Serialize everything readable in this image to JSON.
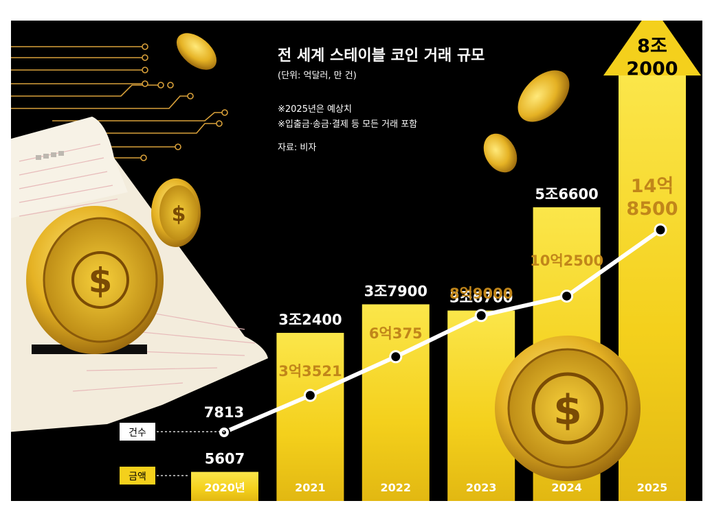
{
  "title": "전 세계 스테이블 코인 거래 규모",
  "unit": "(단위: 억달러, 만 건)",
  "notes": [
    "※2025년은 예상치",
    "※입출금·송금·결제 등 모든 거래 포함"
  ],
  "source": "자료: 비자",
  "legend": {
    "count_label": "건수",
    "amount_label": "금액"
  },
  "coin_symbol": "$",
  "colors": {
    "bar_gold": "#f4d01c",
    "bar_gold_light": "#fbe64a",
    "line": "#ffffff",
    "inner_label": "#c1861a",
    "background": "#000000"
  },
  "chart_data": {
    "type": "bar",
    "categories": [
      "2020년",
      "2021",
      "2022",
      "2023",
      "2024",
      "2025"
    ],
    "series": [
      {
        "values": [
          5607,
          32400,
          37900,
          36700,
          56600,
          82000
        ],
        "labels": [
          "5607",
          "3조2400",
          "3조7900",
          "3조6700",
          "5조6600",
          "8조\n2000"
        ]
      },
      {
        "type": "line",
        "values": [
          7813,
          33521,
          60375,
          89000,
          102500,
          148500
        ],
        "labels": [
          "7813",
          "3억3521",
          "6억375",
          "8억9000",
          "10억2500",
          "14억\n8500"
        ]
      }
    ],
    "projected_category": "2025"
  }
}
